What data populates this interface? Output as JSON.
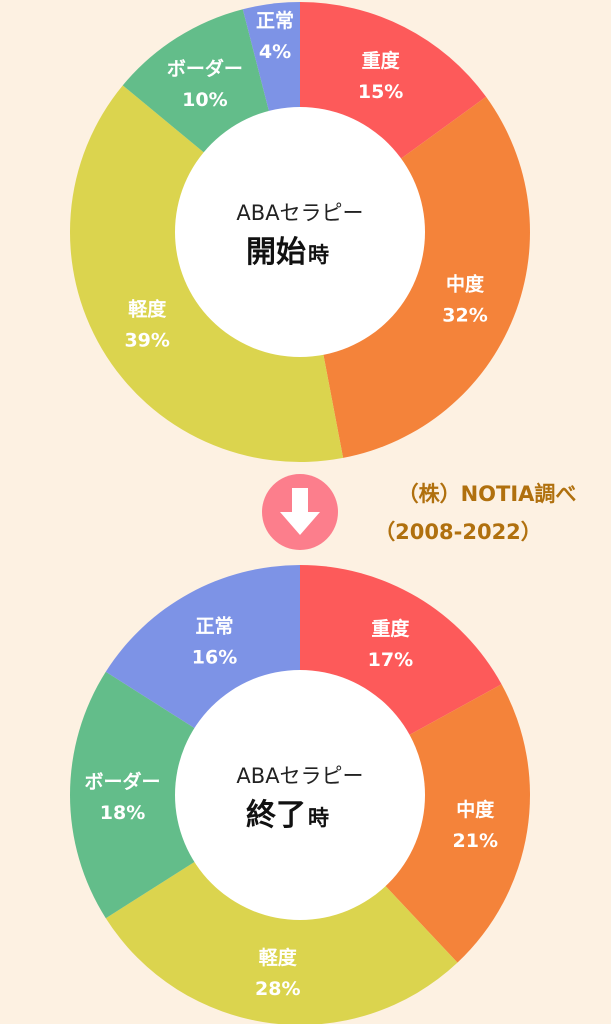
{
  "colors": {
    "background": "#fdf1e2",
    "severe": "#fd5a5a",
    "moderate": "#f4833a",
    "mild": "#dbd44e",
    "border": "#63bd8a",
    "normal": "#7d93e6",
    "arrow_circle": "#fc7e8c",
    "source_text": "#b0700e"
  },
  "arrow": {
    "icon": "down-arrow-icon"
  },
  "source": {
    "line1": "（株）NOTIA調べ",
    "line2": "（2008-2022）"
  },
  "chart_data": [
    {
      "type": "pie",
      "variant": "donut",
      "center_line1": "ABAセラピー",
      "center_main": "開始",
      "center_suffix": "時",
      "slices": [
        {
          "label": "重度",
          "value": 15,
          "value_label": "15%",
          "color": "#fd5a5a"
        },
        {
          "label": "中度",
          "value": 32,
          "value_label": "32%",
          "color": "#f4833a"
        },
        {
          "label": "軽度",
          "value": 39,
          "value_label": "39%",
          "color": "#dbd44e"
        },
        {
          "label": "ボーダー",
          "value": 10,
          "value_label": "10%",
          "color": "#63bd8a"
        },
        {
          "label": "正常",
          "value": 4,
          "value_label": "4%",
          "color": "#7d93e6"
        }
      ]
    },
    {
      "type": "pie",
      "variant": "donut",
      "center_line1": "ABAセラピー",
      "center_main": "終了",
      "center_suffix": "時",
      "slices": [
        {
          "label": "重度",
          "value": 17,
          "value_label": "17%",
          "color": "#fd5a5a"
        },
        {
          "label": "中度",
          "value": 21,
          "value_label": "21%",
          "color": "#f4833a"
        },
        {
          "label": "軽度",
          "value": 28,
          "value_label": "28%",
          "color": "#dbd44e"
        },
        {
          "label": "ボーダー",
          "value": 18,
          "value_label": "18%",
          "color": "#63bd8a"
        },
        {
          "label": "正常",
          "value": 16,
          "value_label": "16%",
          "color": "#7d93e6"
        }
      ]
    }
  ]
}
